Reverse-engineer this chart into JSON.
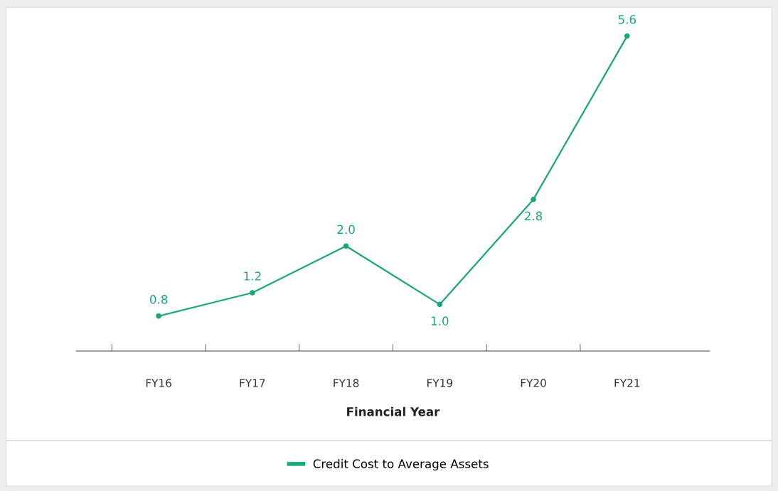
{
  "chart_data": {
    "type": "line",
    "xlabel": "Financial Year",
    "categories": [
      "FY16",
      "FY17",
      "FY18",
      "FY19",
      "FY20",
      "FY21"
    ],
    "series": [
      {
        "name": "Credit Cost to Average Assets",
        "color": "#1aa87a",
        "values": [
          0.8,
          1.2,
          2.0,
          1.0,
          2.8,
          5.6
        ],
        "value_labels": [
          "0.8",
          "1.2",
          "2.0",
          "1.0",
          "2.8",
          "5.6"
        ]
      }
    ],
    "marker": "circle",
    "line_style": "solid",
    "grid": false,
    "legend": "bottom",
    "tick_labels": "x"
  }
}
